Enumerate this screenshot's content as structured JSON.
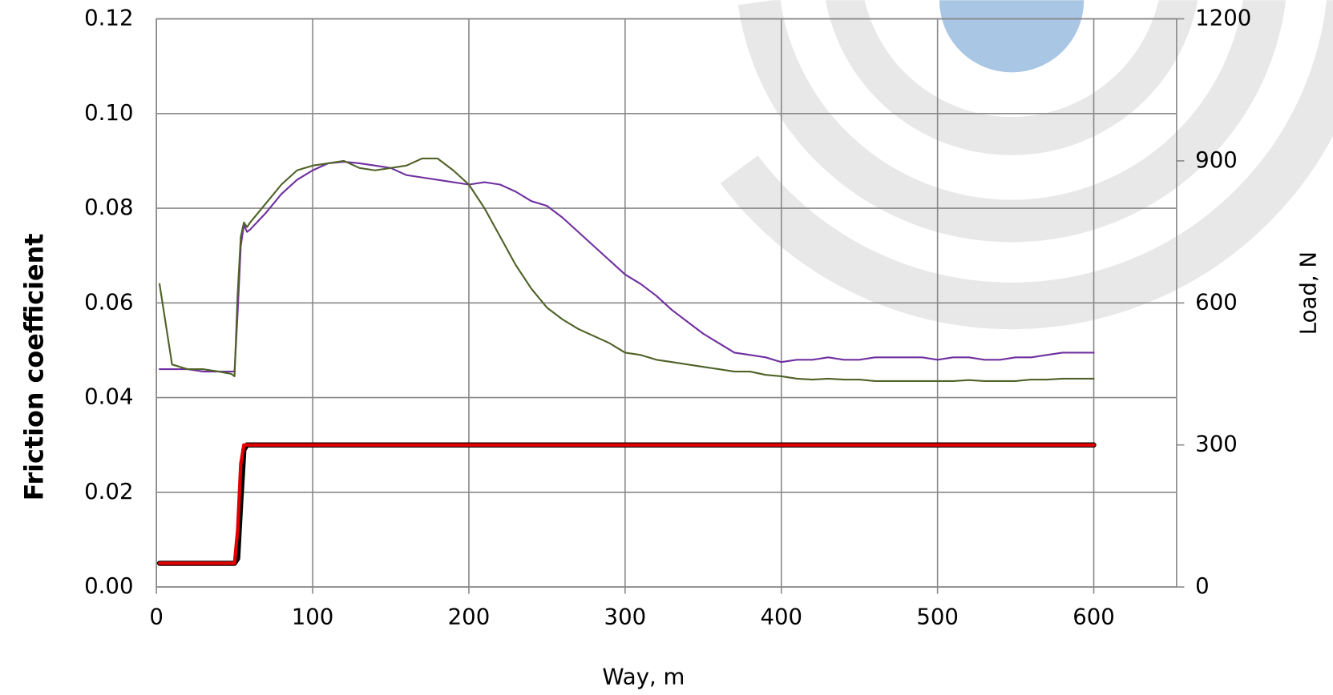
{
  "chart_data": {
    "type": "line",
    "x_label": "Way, m",
    "y_label": "Friction coefficient",
    "y2_label": "Load, N",
    "x": [
      2,
      10,
      20,
      30,
      40,
      48,
      50,
      52,
      54,
      56,
      58,
      60,
      70,
      80,
      90,
      100,
      110,
      120,
      130,
      140,
      150,
      160,
      170,
      180,
      190,
      200,
      210,
      220,
      230,
      240,
      250,
      260,
      270,
      280,
      290,
      300,
      310,
      320,
      330,
      340,
      350,
      360,
      370,
      380,
      390,
      400,
      410,
      420,
      430,
      440,
      450,
      460,
      470,
      480,
      490,
      500,
      510,
      520,
      530,
      540,
      550,
      560,
      570,
      580,
      590,
      600
    ],
    "series": [
      {
        "color": "#7030a0",
        "axis": "y",
        "values": [
          0.046,
          0.046,
          0.046,
          0.0455,
          0.0455,
          0.0455,
          0.0455,
          0.058,
          0.072,
          0.0765,
          0.075,
          0.0755,
          0.079,
          0.083,
          0.086,
          0.088,
          0.0895,
          0.0898,
          0.0895,
          0.089,
          0.0885,
          0.087,
          0.0865,
          0.086,
          0.0855,
          0.085,
          0.0855,
          0.085,
          0.0835,
          0.0815,
          0.0805,
          0.078,
          0.075,
          0.072,
          0.069,
          0.066,
          0.064,
          0.0615,
          0.0585,
          0.056,
          0.0535,
          0.0515,
          0.0495,
          0.049,
          0.0485,
          0.0475,
          0.048,
          0.048,
          0.0485,
          0.048,
          0.048,
          0.0485,
          0.0485,
          0.0485,
          0.0485,
          0.048,
          0.0485,
          0.0485,
          0.048,
          0.048,
          0.0485,
          0.0485,
          0.049,
          0.0495,
          0.0495,
          0.0495
        ]
      },
      {
        "color": "#4f6228",
        "axis": "y",
        "values": [
          0.064,
          0.047,
          0.046,
          0.046,
          0.0455,
          0.045,
          0.0445,
          0.062,
          0.074,
          0.077,
          0.076,
          0.077,
          0.081,
          0.085,
          0.088,
          0.089,
          0.0895,
          0.09,
          0.0885,
          0.088,
          0.0885,
          0.089,
          0.0905,
          0.0905,
          0.088,
          0.085,
          0.08,
          0.074,
          0.068,
          0.063,
          0.059,
          0.0565,
          0.0545,
          0.053,
          0.0515,
          0.0495,
          0.049,
          0.048,
          0.0475,
          0.047,
          0.0465,
          0.046,
          0.0455,
          0.0455,
          0.0448,
          0.0445,
          0.044,
          0.0438,
          0.044,
          0.0438,
          0.0438,
          0.0435,
          0.0435,
          0.0435,
          0.0435,
          0.0435,
          0.0435,
          0.0437,
          0.0435,
          0.0435,
          0.0435,
          0.0438,
          0.0438,
          0.044,
          0.044,
          0.044
        ]
      },
      {
        "color": "#000000",
        "axis": "y2",
        "values": [
          50,
          50,
          50,
          50,
          50,
          50,
          50,
          60,
          180,
          290,
          300,
          300,
          300,
          300,
          300,
          300,
          300,
          300,
          300,
          300,
          300,
          300,
          300,
          300,
          300,
          300,
          300,
          300,
          300,
          300,
          300,
          300,
          300,
          300,
          300,
          300,
          300,
          300,
          300,
          300,
          300,
          300,
          300,
          300,
          300,
          300,
          300,
          300,
          300,
          300,
          300,
          300,
          300,
          300,
          300,
          300,
          300,
          300,
          300,
          300,
          300,
          300,
          300,
          300,
          300,
          300
        ]
      },
      {
        "color": "#e00000",
        "axis": "y2",
        "values": [
          50,
          50,
          50,
          50,
          50,
          50,
          50,
          120,
          260,
          300,
          300,
          300,
          300,
          300,
          300,
          300,
          300,
          300,
          300,
          300,
          300,
          300,
          300,
          300,
          300,
          300,
          300,
          300,
          300,
          300,
          300,
          300,
          300,
          300,
          300,
          300,
          300,
          300,
          300,
          300,
          300,
          300,
          300,
          300,
          300,
          300,
          300,
          300,
          300,
          300,
          300,
          300,
          300,
          300,
          300,
          300,
          300,
          300,
          300,
          300,
          300,
          300,
          300,
          300,
          300,
          300
        ]
      }
    ],
    "xlim": [
      0,
      653
    ],
    "xticks": [
      0,
      100,
      200,
      300,
      400,
      500,
      600
    ],
    "ylim": [
      0,
      0.12
    ],
    "yticks": [
      {
        "value": 0,
        "label": "0.00"
      },
      0.02,
      0.04,
      0.06,
      0.08,
      {
        "value": 0.1,
        "label": "0.10"
      },
      0.12
    ],
    "y2lim": [
      0,
      1200
    ],
    "y2ticks": [
      0,
      300,
      600,
      900,
      1200
    ],
    "y2_color": "#ff0000",
    "grid": true
  }
}
